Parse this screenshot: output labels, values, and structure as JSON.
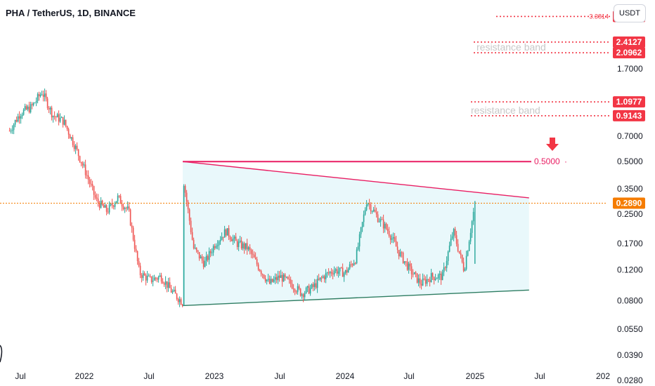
{
  "header": {
    "symbol_title": "PHA / TetherUS, 1D, BINANCE",
    "currency_button": "USDT"
  },
  "colors": {
    "candle_up": "#26a69a",
    "candle_down": "#ef5350",
    "resistance_line": "#e91e63",
    "support_line": "#2e7d62",
    "triangle_fill": "#e3f6fa",
    "price_line": "#f57c00",
    "level_red": "#f23645",
    "axis_text": "#131722"
  },
  "chart_data": {
    "type": "candlestick",
    "y_scale": "log",
    "ylim": [
      0.026,
      4.2
    ],
    "y_ticks": [
      "1.7000",
      "0.7000",
      "0.5000",
      "0.3500",
      "0.2500",
      "0.1700",
      "0.1200",
      "0.0800",
      "0.0550",
      "0.0390",
      "0.0280"
    ],
    "x_ticks": [
      "Jul",
      "2022",
      "Jul",
      "2023",
      "Jul",
      "2024",
      "Jul",
      "2025",
      "Jul",
      "202"
    ],
    "current_price": {
      "label": "0.2890",
      "value": 0.289
    },
    "levels": [
      {
        "value": 3.3814,
        "label": "3.3814",
        "side_label": "3.3814"
      },
      {
        "value": 2.4127,
        "label": "2.4127"
      },
      {
        "value": 2.0962,
        "label": "2.0962",
        "annotation": "resistance band"
      },
      {
        "value": 1.0977,
        "label": "1.0977"
      },
      {
        "value": 0.9143,
        "label": "0.9143",
        "annotation": "resistance band"
      }
    ],
    "target_line": {
      "value": 0.5,
      "label": "0.5000",
      "start": "2022-10",
      "end": "2025-06"
    },
    "triangle": {
      "upper": {
        "start": [
          "2022-10",
          0.5
        ],
        "end": [
          "2025-06",
          0.31
        ]
      },
      "lower": {
        "start": [
          "2022-10",
          0.075
        ],
        "end": [
          "2025-06",
          0.092
        ]
      }
    },
    "price_path": [
      [
        "2021-06",
        0.75
      ],
      [
        "2021-07",
        0.95
      ],
      [
        "2021-08",
        1.02
      ],
      [
        "2021-09",
        1.25
      ],
      [
        "2021-10",
        0.92
      ],
      [
        "2021-11",
        0.85
      ],
      [
        "2021-12",
        0.62
      ],
      [
        "2022-01",
        0.44
      ],
      [
        "2022-02",
        0.3
      ],
      [
        "2022-03",
        0.26
      ],
      [
        "2022-04",
        0.31
      ],
      [
        "2022-05",
        0.26
      ],
      [
        "2022-06",
        0.115
      ],
      [
        "2022-07",
        0.105
      ],
      [
        "2022-08",
        0.11
      ],
      [
        "2022-09",
        0.09
      ],
      [
        "2022-10",
        0.078
      ],
      [
        "2022-10",
        0.42
      ],
      [
        "2022-11",
        0.16
      ],
      [
        "2022-12",
        0.13
      ],
      [
        "2023-01",
        0.17
      ],
      [
        "2023-02",
        0.2
      ],
      [
        "2023-03",
        0.17
      ],
      [
        "2023-04",
        0.16
      ],
      [
        "2023-05",
        0.125
      ],
      [
        "2023-06",
        0.1
      ],
      [
        "2023-07",
        0.11
      ],
      [
        "2023-08",
        0.1
      ],
      [
        "2023-09",
        0.088
      ],
      [
        "2023-10",
        0.095
      ],
      [
        "2023-11",
        0.11
      ],
      [
        "2023-12",
        0.12
      ],
      [
        "2024-01",
        0.115
      ],
      [
        "2024-02",
        0.14
      ],
      [
        "2024-03",
        0.3
      ],
      [
        "2024-04",
        0.24
      ],
      [
        "2024-05",
        0.2
      ],
      [
        "2024-06",
        0.15
      ],
      [
        "2024-07",
        0.12
      ],
      [
        "2024-08",
        0.1
      ],
      [
        "2024-09",
        0.11
      ],
      [
        "2024-10",
        0.11
      ],
      [
        "2024-11",
        0.2
      ],
      [
        "2024-12",
        0.12
      ],
      [
        "2025-01",
        0.289
      ]
    ]
  }
}
